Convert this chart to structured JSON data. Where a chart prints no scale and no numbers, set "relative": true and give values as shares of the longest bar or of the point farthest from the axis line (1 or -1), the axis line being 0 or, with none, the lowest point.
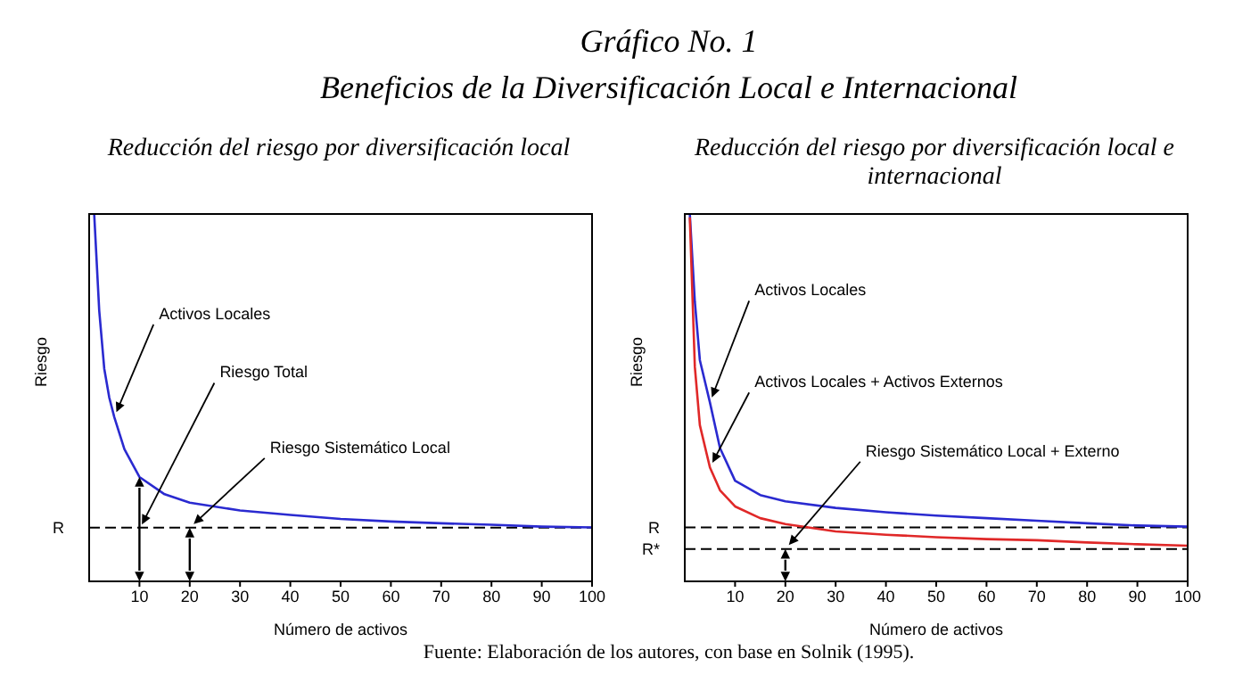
{
  "chart_data": [
    {
      "type": "line",
      "title": "Reducción del riesgo por diversificación local",
      "xlabel": "Número de activos",
      "ylabel": "Riesgo",
      "relative": true,
      "marker": "none",
      "line_style": "solid",
      "xlim": [
        0,
        100
      ],
      "xticks": [
        10,
        20,
        30,
        40,
        50,
        60,
        70,
        80,
        90,
        100
      ],
      "x": [
        1,
        2,
        3,
        4,
        5,
        7,
        10,
        15,
        20,
        30,
        40,
        50,
        60,
        70,
        80,
        90,
        100
      ],
      "series": [
        {
          "color": "#2a2ad0",
          "values": [
            1,
            0.737,
            0.579,
            0.5,
            0.447,
            0.36,
            0.284,
            0.237,
            0.214,
            0.193,
            0.181,
            0.17,
            0.163,
            0.158,
            0.154,
            0.149,
            0.147
          ]
        }
      ],
      "ref_lines": [
        {
          "axis": "y",
          "value": 0.146,
          "label": "R",
          "color": "#000000",
          "line_style": "dashed"
        }
      ],
      "annotations": [
        "Gráfico No. 1",
        "Beneficios de la Diversificación Local e Internacional",
        {
          "text": "Activos Locales",
          "x": 5,
          "y": 0.447
        },
        {
          "text": "Riesgo Total",
          "x": 10,
          "y": 0.142
        },
        {
          "text": "Riesgo Sistemático Local",
          "x": 20,
          "y": 0.146
        },
        "Fuente: Elaboración de los autores, con base en Solnik (1995)."
      ]
    },
    {
      "type": "line",
      "title": "Reducción del riesgo por diversificación local e internacional",
      "xlabel": "Número de activos",
      "ylabel": "Riesgo",
      "relative": true,
      "marker": "none",
      "line_style": "solid",
      "xlim": [
        0,
        100
      ],
      "xticks": [
        10,
        20,
        30,
        40,
        50,
        60,
        70,
        80,
        90,
        100
      ],
      "x": [
        1,
        2,
        3,
        5,
        7,
        10,
        15,
        20,
        30,
        40,
        50,
        60,
        70,
        80,
        90,
        100
      ],
      "series": [
        {
          "color": "#2a2ad0",
          "values": [
            1,
            0.761,
            0.602,
            0.487,
            0.363,
            0.274,
            0.235,
            0.218,
            0.2,
            0.188,
            0.179,
            0.172,
            0.165,
            0.158,
            0.152,
            0.149
          ]
        },
        {
          "color": "#e02828",
          "values": [
            0.991,
            0.584,
            0.425,
            0.31,
            0.248,
            0.204,
            0.172,
            0.156,
            0.136,
            0.127,
            0.12,
            0.115,
            0.112,
            0.106,
            0.101,
            0.097
          ]
        }
      ],
      "ref_lines": [
        {
          "axis": "y",
          "value": 0.147,
          "label": "R",
          "color": "#000000",
          "line_style": "dashed"
        },
        {
          "axis": "y",
          "value": 0.088,
          "label": "R*",
          "color": "#000000",
          "line_style": "dashed"
        }
      ],
      "annotations": [
        {
          "text": "Activos Locales",
          "x": 5,
          "y": 0.487
        },
        {
          "text": "Activos Locales + Activos Externos",
          "x": 5,
          "y": 0.31
        },
        {
          "text": "Riesgo Sistemático Local + Externo",
          "x": 20,
          "y": 0.088
        }
      ]
    }
  ]
}
